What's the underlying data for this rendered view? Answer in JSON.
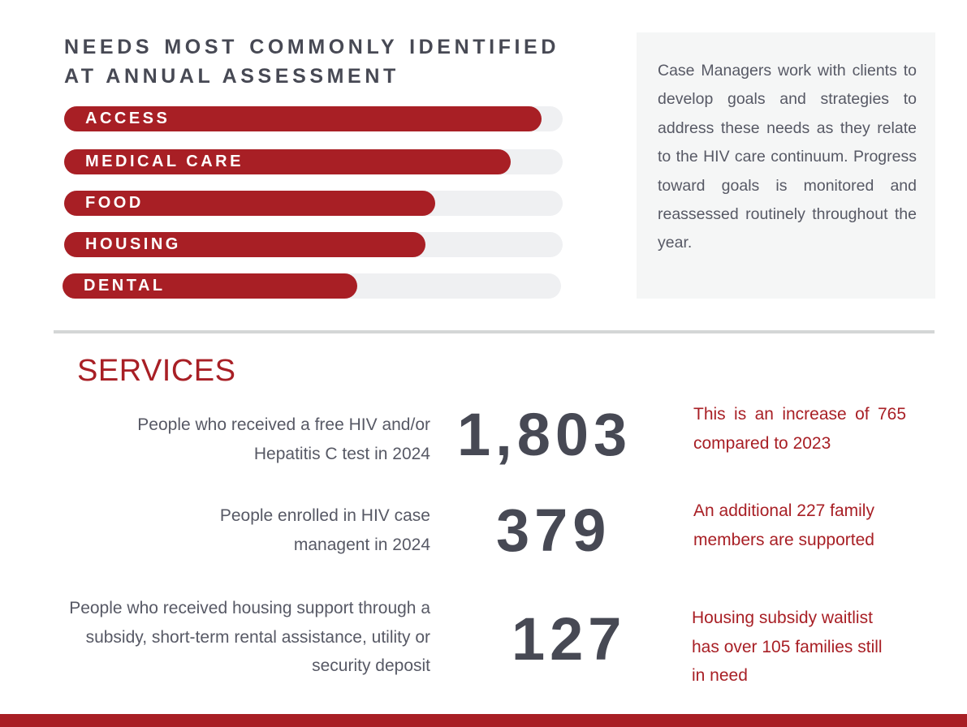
{
  "needs": {
    "title": "NEEDS MOST COMMONLY IDENTIFIED AT ANNUAL ASSESSMENT",
    "items": [
      {
        "label": "ACCESS",
        "fraction": 0.958
      },
      {
        "label": "MEDICAL CARE",
        "fraction": 0.895
      },
      {
        "label": "FOOD",
        "fraction": 0.745
      },
      {
        "label": "HOUSING",
        "fraction": 0.725
      },
      {
        "label": "DENTAL",
        "fraction": 0.592
      }
    ],
    "bar_color": "#a81f25",
    "track_color": "#eff0f2"
  },
  "info_box": {
    "text": "Case Managers work with clients to develop goals and strategies to address these needs as they relate to the HIV care continuum. Progress toward goals is monitored and reassessed routinely throughout the year."
  },
  "services": {
    "title": "SERVICES",
    "rows": [
      {
        "description": "People who received a free HIV and/or Hepatitis C test in 2024",
        "number": "1,803",
        "note": "This is an increase of 765 compared to 2023"
      },
      {
        "description": "People enrolled in HIV case managent in 2024",
        "number": "379",
        "note": "An additional 227 family members are supported"
      },
      {
        "description": "People who received  housing support through a subsidy, short-term rental assistance, utility or security deposit",
        "number": "127",
        "note": "Housing subsidy waitlist has over 105 families still in need"
      }
    ]
  },
  "colors": {
    "accent": "#a81f25",
    "dark_text": "#474954",
    "body_text": "#575965"
  }
}
